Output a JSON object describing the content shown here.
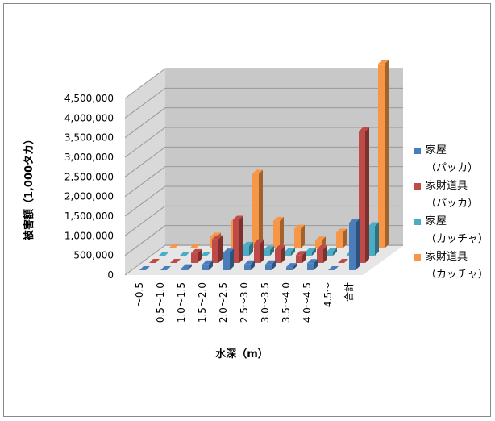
{
  "chart_data": {
    "type": "bar3d",
    "y_label": "被害額（1,000タカ）",
    "x_label": "水深（m）",
    "categories": [
      "～0.5",
      "0.5～1.0",
      "1.0～1.5",
      "1.5～2.0",
      "2.0～2.5",
      "2.5～3.0",
      "3.0～3.5",
      "3.5～4.0",
      "4.0～4.5",
      "4.5～",
      "合計"
    ],
    "series": [
      {
        "name": "家屋（パッカ）",
        "color": "#4a7ebb",
        "values": [
          0,
          0,
          50000,
          150000,
          450000,
          150000,
          150000,
          80000,
          180000,
          0,
          1210000
        ]
      },
      {
        "name": "家財道具（パッカ）",
        "color": "#be4b48",
        "values": [
          0,
          0,
          250000,
          600000,
          1100000,
          500000,
          350000,
          200000,
          350000,
          0,
          3350000
        ]
      },
      {
        "name": "家屋（カッチャ）",
        "color": "#4bacc6",
        "values": [
          0,
          0,
          0,
          0,
          250000,
          150000,
          100000,
          100000,
          100000,
          50000,
          750000
        ]
      },
      {
        "name": "家財道具（カッチャ）",
        "color": "#f79646",
        "values": [
          0,
          0,
          300000,
          700000,
          1900000,
          700000,
          500000,
          200000,
          400000,
          0,
          4700000
        ]
      }
    ],
    "ylim": [
      0,
      4500000
    ],
    "yticks": [
      0,
      {
        "value": 500000,
        "label": "500,000"
      },
      {
        "value": 1000000,
        "label": "1,000,000"
      },
      {
        "value": 1500000,
        "label": "1,500,000"
      },
      {
        "value": 2000000,
        "label": "2,000,000"
      },
      {
        "value": 2500000,
        "label": "2,500,000"
      },
      {
        "value": 3000000,
        "label": "3,000,000"
      },
      {
        "value": 3500000,
        "label": "3,500,000"
      },
      {
        "value": 4000000,
        "label": "4,000,000"
      },
      {
        "value": 4500000,
        "label": "4,500,000"
      }
    ],
    "grid": true
  }
}
